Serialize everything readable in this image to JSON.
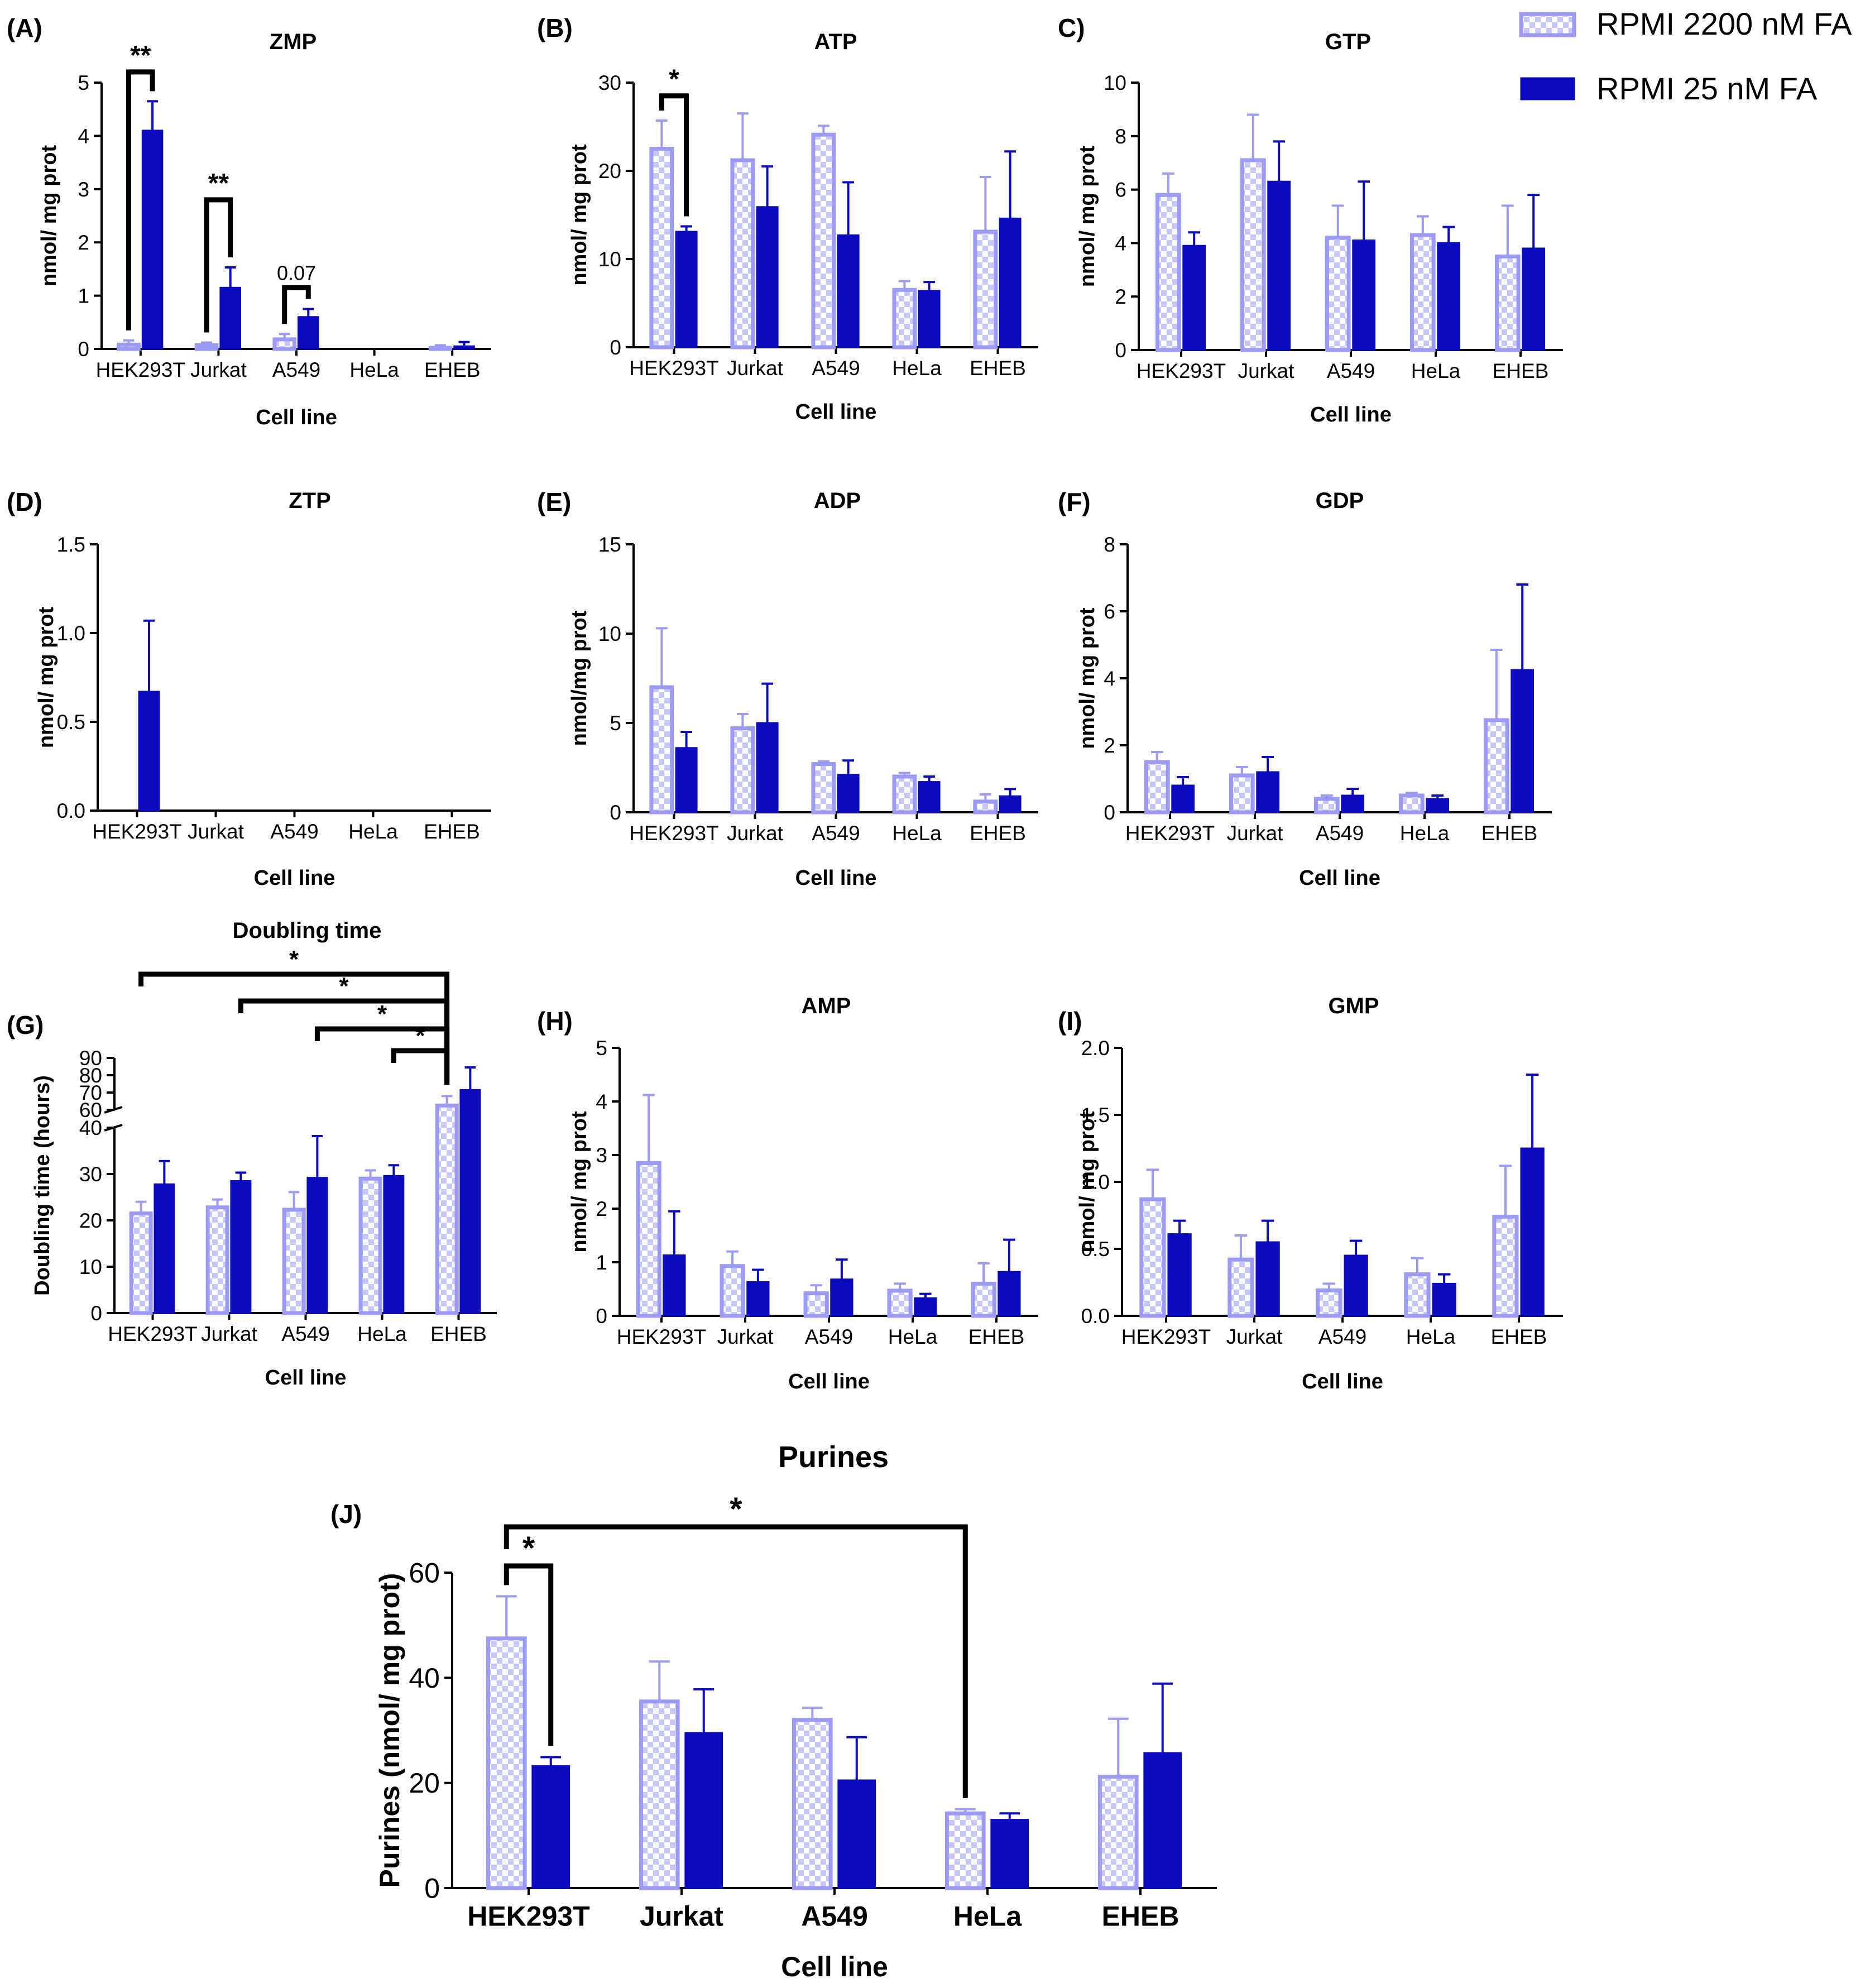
{
  "legend": {
    "series": [
      {
        "name": "RPMI 2200 nM FA",
        "color": "#9B9BF5",
        "pattern": "checker"
      },
      {
        "name": "RPMI 25 nM FA",
        "color": "#0A0ABF",
        "pattern": "solid"
      }
    ]
  },
  "colors": {
    "light": "#9B9BF5",
    "dark": "#0A0ABF",
    "axis": "#000000"
  },
  "chart_data": [
    {
      "id": "A",
      "type": "bar",
      "panel_label": "(A)",
      "title": "ZMP",
      "xlabel": "Cell line",
      "ylabel": "nmol/ mg prot",
      "categories": [
        "HEK293T",
        "Jurkat",
        "A549",
        "HeLa",
        "EHEB"
      ],
      "ylim": [
        0,
        5
      ],
      "yticks": [
        0,
        1,
        2,
        3,
        4,
        5
      ],
      "ytick_labels": [
        "0",
        "1",
        "2",
        "3",
        "4",
        "5"
      ],
      "series": [
        {
          "name": "RPMI 2200 nM FA",
          "values": [
            0.08,
            0.07,
            0.18,
            0,
            0.02
          ],
          "errors": [
            0.08,
            0.05,
            0.1,
            0,
            0.05
          ]
        },
        {
          "name": "RPMI 25 nM FA",
          "values": [
            4.1,
            1.15,
            0.6,
            0,
            0.05
          ],
          "errors": [
            0.55,
            0.38,
            0.15,
            0,
            0.08
          ]
        }
      ],
      "annotations": [
        {
          "type": "bracket",
          "cat": 0,
          "y": 5.2,
          "label": "**"
        },
        {
          "type": "bracket",
          "cat": 1,
          "y": 2.8,
          "label": "**"
        },
        {
          "type": "bracket",
          "cat": 2,
          "y": 1.15,
          "label": "0.07",
          "bold": false
        }
      ]
    },
    {
      "id": "B",
      "type": "bar",
      "panel_label": "(B)",
      "title": "ATP",
      "xlabel": "Cell line",
      "ylabel": "nmol/ mg prot",
      "categories": [
        "HEK293T",
        "Jurkat",
        "A549",
        "HeLa",
        "EHEB"
      ],
      "ylim": [
        0,
        30
      ],
      "yticks": [
        0,
        10,
        20,
        30
      ],
      "ytick_labels": [
        "0",
        "10",
        "20",
        "30"
      ],
      "series": [
        {
          "name": "RPMI 2200 nM FA",
          "values": [
            22.5,
            21.2,
            24.1,
            6.5,
            13.1
          ],
          "errors": [
            3.2,
            5.3,
            1.0,
            1.0,
            6.2
          ]
        },
        {
          "name": "RPMI 25 nM FA",
          "values": [
            13.1,
            15.9,
            12.7,
            6.4,
            14.6
          ],
          "errors": [
            0.6,
            4.6,
            6.0,
            1.0,
            7.6
          ]
        }
      ],
      "annotations": [
        {
          "type": "bracket",
          "cat": 0,
          "y": 28.5,
          "label": "*"
        }
      ]
    },
    {
      "id": "C",
      "type": "bar",
      "panel_label": "C)",
      "title": "GTP",
      "xlabel": "Cell line",
      "ylabel": "nmol/ mg prot",
      "categories": [
        "HEK293T",
        "Jurkat",
        "A549",
        "HeLa",
        "EHEB"
      ],
      "ylim": [
        0,
        10
      ],
      "yticks": [
        0,
        2,
        4,
        6,
        8,
        10
      ],
      "ytick_labels": [
        "0",
        "2",
        "4",
        "6",
        "8",
        "10"
      ],
      "series": [
        {
          "name": "RPMI 2200 nM FA",
          "values": [
            5.8,
            7.1,
            4.2,
            4.3,
            3.5
          ],
          "errors": [
            0.8,
            1.7,
            1.2,
            0.7,
            1.9
          ]
        },
        {
          "name": "RPMI 25 nM FA",
          "values": [
            3.9,
            6.3,
            4.1,
            4.0,
            3.8
          ],
          "errors": [
            0.5,
            1.5,
            2.2,
            0.6,
            2.0
          ]
        }
      ],
      "annotations": []
    },
    {
      "id": "D",
      "type": "bar",
      "panel_label": "(D)",
      "title": "ZTP",
      "xlabel": "Cell line",
      "ylabel": "nmol/ mg prot",
      "categories": [
        "HEK293T",
        "Jurkat",
        "A549",
        "HeLa",
        "EHEB"
      ],
      "ylim": [
        0,
        1.5
      ],
      "yticks": [
        0,
        0.5,
        1.0,
        1.5
      ],
      "ytick_labels": [
        "0.0",
        "0.5",
        "1.0",
        "1.5"
      ],
      "series": [
        {
          "name": "RPMI 2200 nM FA",
          "values": [
            0,
            0,
            0,
            0,
            0
          ],
          "errors": [
            0,
            0,
            0,
            0,
            0
          ]
        },
        {
          "name": "RPMI 25 nM FA",
          "values": [
            0.67,
            0,
            0,
            0,
            0
          ],
          "errors": [
            0.4,
            0,
            0,
            0,
            0
          ]
        }
      ],
      "annotations": []
    },
    {
      "id": "E",
      "type": "bar",
      "panel_label": "(E)",
      "title": "ADP",
      "xlabel": "Cell line",
      "ylabel": "nmol/mg prot",
      "categories": [
        "HEK293T",
        "Jurkat",
        "A549",
        "HeLa",
        "EHEB"
      ],
      "ylim": [
        0,
        15
      ],
      "yticks": [
        0,
        5,
        10,
        15
      ],
      "ytick_labels": [
        "0",
        "5",
        "10",
        "15"
      ],
      "series": [
        {
          "name": "RPMI 2200 nM FA",
          "values": [
            7.0,
            4.7,
            2.7,
            2.0,
            0.6
          ],
          "errors": [
            3.3,
            0.8,
            0.15,
            0.2,
            0.4
          ]
        },
        {
          "name": "RPMI 25 nM FA",
          "values": [
            3.6,
            5.0,
            2.1,
            1.7,
            0.9
          ],
          "errors": [
            0.9,
            2.2,
            0.8,
            0.3,
            0.4
          ]
        }
      ],
      "annotations": []
    },
    {
      "id": "F",
      "type": "bar",
      "panel_label": "(F)",
      "title": "GDP",
      "xlabel": "Cell line",
      "ylabel": "nmol/ mg prot",
      "categories": [
        "HEK293T",
        "Jurkat",
        "A549",
        "HeLa",
        "EHEB"
      ],
      "ylim": [
        0,
        8
      ],
      "yticks": [
        0,
        2,
        4,
        6,
        8
      ],
      "ytick_labels": [
        "0",
        "2",
        "4",
        "6",
        "8"
      ],
      "series": [
        {
          "name": "RPMI 2200 nM FA",
          "values": [
            1.5,
            1.1,
            0.4,
            0.5,
            2.75
          ],
          "errors": [
            0.3,
            0.25,
            0.1,
            0.08,
            2.1
          ]
        },
        {
          "name": "RPMI 25 nM FA",
          "values": [
            0.8,
            1.2,
            0.5,
            0.4,
            4.25
          ],
          "errors": [
            0.25,
            0.45,
            0.2,
            0.1,
            2.55
          ]
        }
      ],
      "annotations": []
    },
    {
      "id": "G",
      "type": "bar",
      "panel_label": "(G)",
      "title": "Doubling time",
      "xlabel": "Cell line",
      "ylabel": "Doubling time (hours)",
      "categories": [
        "HEK293T",
        "Jurkat",
        "A549",
        "HeLa",
        "EHEB"
      ],
      "ylim": [
        0,
        90
      ],
      "broken_axis": {
        "lower": [
          0,
          40
        ],
        "upper": [
          60,
          90
        ]
      },
      "yticks": [
        0,
        10,
        20,
        30,
        40,
        60,
        70,
        80,
        90
      ],
      "ytick_labels": [
        "0",
        "10",
        "20",
        "30",
        "40",
        "60",
        "70",
        "80",
        "90"
      ],
      "series": [
        {
          "name": "RPMI 2200 nM FA",
          "values": [
            21.5,
            22.8,
            22.3,
            29.0,
            62.5
          ],
          "errors": [
            2.5,
            1.7,
            3.8,
            1.8,
            5.5
          ]
        },
        {
          "name": "RPMI 25 nM FA",
          "values": [
            27.8,
            28.5,
            29.2,
            29.6,
            71.5
          ],
          "errors": [
            5.0,
            1.8,
            9.0,
            2.3,
            13.0
          ]
        }
      ],
      "annotations": [
        {
          "type": "span",
          "from": 0,
          "to": 4,
          "label": "*"
        },
        {
          "type": "span",
          "from": 1,
          "to": 4,
          "label": "*"
        },
        {
          "type": "span",
          "from": 2,
          "to": 4,
          "label": "*"
        },
        {
          "type": "span",
          "from": 3,
          "to": 4,
          "label": "*"
        }
      ]
    },
    {
      "id": "H",
      "type": "bar",
      "panel_label": "(H)",
      "title": "AMP",
      "xlabel": "Cell line",
      "ylabel": "nmol/ mg prot",
      "categories": [
        "HEK293T",
        "Jurkat",
        "A549",
        "HeLa",
        "EHEB"
      ],
      "ylim": [
        0,
        5
      ],
      "yticks": [
        0,
        1,
        2,
        3,
        4,
        5
      ],
      "ytick_labels": [
        "0",
        "1",
        "2",
        "3",
        "4",
        "5"
      ],
      "series": [
        {
          "name": "RPMI 2200 nM FA",
          "values": [
            2.85,
            0.93,
            0.42,
            0.47,
            0.6
          ],
          "errors": [
            1.27,
            0.27,
            0.15,
            0.13,
            0.38
          ]
        },
        {
          "name": "RPMI 25 nM FA",
          "values": [
            1.13,
            0.63,
            0.68,
            0.33,
            0.82
          ],
          "errors": [
            0.82,
            0.23,
            0.37,
            0.08,
            0.6
          ]
        }
      ],
      "annotations": []
    },
    {
      "id": "I",
      "type": "bar",
      "panel_label": "(I)",
      "title": "GMP",
      "xlabel": "Cell line",
      "ylabel": "nmol/ mg prot",
      "categories": [
        "HEK293T",
        "Jurkat",
        "A549",
        "HeLa",
        "EHEB"
      ],
      "ylim": [
        0,
        2.0
      ],
      "yticks": [
        0,
        0.5,
        1.0,
        1.5,
        2.0
      ],
      "ytick_labels": [
        "0.0",
        "0.5",
        "1.0",
        "1.5",
        "2.0"
      ],
      "series": [
        {
          "name": "RPMI 2200 nM FA",
          "values": [
            0.87,
            0.42,
            0.19,
            0.31,
            0.74
          ],
          "errors": [
            0.22,
            0.18,
            0.05,
            0.12,
            0.38
          ]
        },
        {
          "name": "RPMI 25 nM FA",
          "values": [
            0.61,
            0.55,
            0.45,
            0.24,
            1.25
          ],
          "errors": [
            0.1,
            0.16,
            0.11,
            0.07,
            0.55
          ]
        }
      ],
      "annotations": []
    },
    {
      "id": "J",
      "type": "bar",
      "panel_label": "(J)",
      "title": "Purines",
      "xlabel": "Cell line",
      "ylabel": "Purines (nmol/ mg prot)",
      "categories": [
        "HEK293T",
        "Jurkat",
        "A549",
        "HeLa",
        "EHEB"
      ],
      "ylim": [
        0,
        60
      ],
      "yticks": [
        0,
        20,
        40,
        60
      ],
      "ytick_labels": [
        "0",
        "20",
        "40",
        "60"
      ],
      "series": [
        {
          "name": "RPMI 2200 nM FA",
          "values": [
            47.5,
            35.5,
            32.0,
            14.2,
            21.2
          ],
          "errors": [
            8.0,
            7.6,
            2.3,
            0.8,
            11.0
          ]
        },
        {
          "name": "RPMI 25 nM FA",
          "values": [
            23.2,
            29.5,
            20.5,
            13.0,
            25.7
          ],
          "errors": [
            1.7,
            8.3,
            8.2,
            1.2,
            13.2
          ]
        }
      ],
      "annotations": [
        {
          "type": "span",
          "from": 0,
          "to": 0,
          "label": "*"
        },
        {
          "type": "span",
          "from": 0,
          "to": 3,
          "label": "*"
        }
      ]
    }
  ]
}
